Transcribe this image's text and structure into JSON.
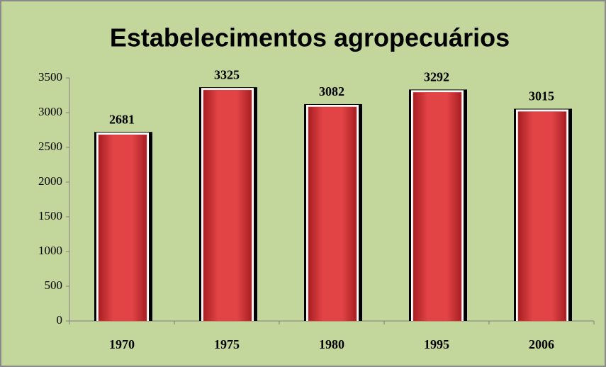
{
  "chart_data": {
    "type": "bar",
    "title": "Estabelecimentos agropecuários",
    "categories": [
      "1970",
      "1975",
      "1980",
      "1995",
      "2006"
    ],
    "values": [
      2681,
      3325,
      3082,
      3292,
      3015
    ],
    "color": "#d9383a",
    "ylim": [
      0,
      3500
    ],
    "yticks": [
      0,
      500,
      1000,
      1500,
      2000,
      2500,
      3000,
      3500
    ]
  }
}
